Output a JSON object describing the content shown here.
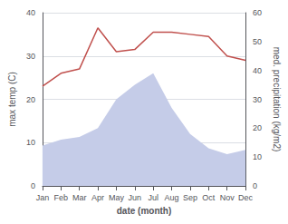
{
  "chart_data": {
    "type": "line",
    "xlabel": "date (month)",
    "ylabel": "max temp (C)",
    "y2label": "med. precipitation (kg/m2)",
    "categories": [
      "Jan",
      "Feb",
      "Mar",
      "Apr",
      "May",
      "Jun",
      "Jul",
      "Aug",
      "Sep",
      "Oct",
      "Nov",
      "Dec"
    ],
    "series": [
      {
        "type": "area",
        "axis": "y2",
        "color": "#c5cce8",
        "values": [
          14,
          16,
          17,
          20,
          30,
          35,
          39,
          27,
          18,
          13,
          11,
          12.5
        ]
      },
      {
        "type": "line",
        "color": "#c0504d",
        "values": [
          23,
          26,
          27,
          36.5,
          31,
          31.5,
          35.5,
          35.5,
          35,
          34.5,
          30,
          29
        ]
      }
    ],
    "ylim": [
      0,
      40
    ],
    "yticks": [
      0,
      10,
      20,
      30,
      40
    ],
    "y2lim": [
      0,
      60
    ],
    "y2ticks": [
      0,
      10,
      20,
      30,
      40,
      50,
      60
    ],
    "grid": true
  }
}
